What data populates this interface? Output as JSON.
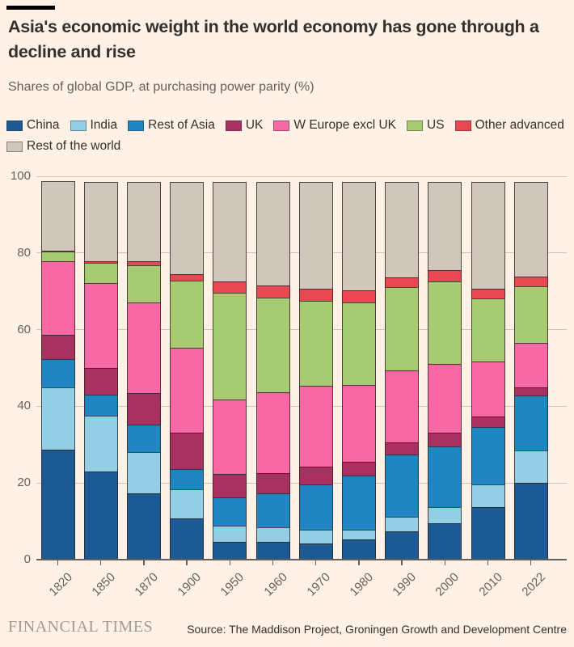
{
  "header": {
    "title": "Asia's economic weight in the world economy has gone through a decline and rise",
    "subtitle": "Shares of global GDP, at purchasing power parity (%)"
  },
  "chart_data": {
    "type": "bar",
    "stacked": true,
    "title": "Asia's economic weight in the world economy has gone through a decline and rise",
    "subtitle": "Shares of global GDP, at purchasing power parity (%)",
    "xlabel": "",
    "ylabel": "Share of global GDP at PPP (%)",
    "ylim": [
      0,
      100
    ],
    "yticks": [
      0,
      20,
      40,
      60,
      80,
      100
    ],
    "grid": "horizontal",
    "legend_position": "top",
    "categories": [
      "1820",
      "1850",
      "1870",
      "1900",
      "1950",
      "1960",
      "1970",
      "1980",
      "1990",
      "2000",
      "2010",
      "2022"
    ],
    "series": [
      {
        "name": "China",
        "color": "#1D5A94",
        "values": [
          28.7,
          23.0,
          17.3,
          10.8,
          4.6,
          4.6,
          4.3,
          5.3,
          7.4,
          9.4,
          13.7,
          20.1
        ]
      },
      {
        "name": "India",
        "color": "#94CEE4",
        "values": [
          16.4,
          14.7,
          10.9,
          7.7,
          4.4,
          4.1,
          3.7,
          2.8,
          4.0,
          4.6,
          6.1,
          8.5
        ]
      },
      {
        "name": "Rest of Asia",
        "color": "#1F86C2",
        "values": [
          7.6,
          5.7,
          7.4,
          5.5,
          7.6,
          9.0,
          12.1,
          14.3,
          16.5,
          16.0,
          15.3,
          14.6
        ]
      },
      {
        "name": "UK",
        "color": "#A93160",
        "values": [
          6.6,
          7.2,
          8.6,
          9.8,
          6.5,
          5.6,
          4.8,
          3.7,
          3.3,
          3.7,
          2.8,
          2.3
        ]
      },
      {
        "name": "W Europe excl UK",
        "color": "#F868A4",
        "values": [
          19.5,
          22.3,
          23.8,
          22.3,
          19.6,
          21.2,
          21.3,
          20.3,
          19.1,
          18.2,
          14.6,
          11.8
        ]
      },
      {
        "name": "US",
        "color": "#A7CB72",
        "values": [
          2.6,
          5.5,
          9.9,
          17.8,
          27.9,
          24.9,
          22.4,
          21.7,
          21.8,
          21.8,
          16.8,
          15.0
        ]
      },
      {
        "name": "Other advanced",
        "color": "#E94852",
        "values": [
          0.3,
          0.7,
          1.2,
          1.9,
          3.3,
          3.4,
          3.4,
          3.5,
          2.8,
          3.0,
          2.7,
          2.8
        ]
      },
      {
        "name": "Rest of the world",
        "color": "#D0C6BB",
        "values": [
          18.3,
          20.9,
          20.9,
          24.2,
          26.1,
          27.2,
          28.0,
          28.4,
          25.1,
          23.3,
          28.0,
          24.9
        ]
      }
    ],
    "legend_rows": [
      7,
      1
    ]
  },
  "footer": {
    "brand": "FINANCIAL TIMES",
    "source": "Source: The Maddison Project, Groningen Growth and Development Centre"
  }
}
